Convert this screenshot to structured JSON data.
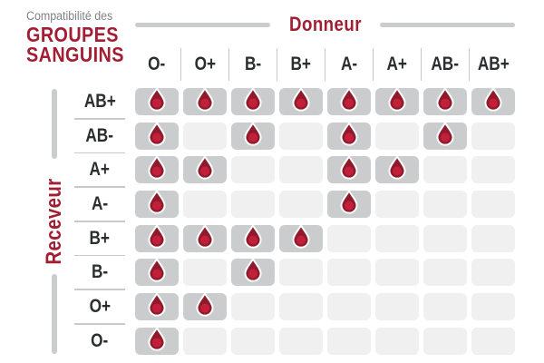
{
  "header": {
    "subtitle": "Compatibilité des",
    "title_line1": "GROUPES",
    "title_line2": "SANGUINS",
    "donor_label": "Donneur",
    "receiver_label": "Receveur"
  },
  "colors": {
    "accent_red": "#A21E33",
    "drop_fill": "#8E1A2B",
    "drop_highlight": "#C2203A",
    "cell_compatible_bg": "#CBCCCE",
    "cell_incompatible_bg": "#F0F0F1",
    "divider_gray": "#C8C9CB",
    "label_dark": "#2B2D2F",
    "subtitle_gray": "#808285"
  },
  "icons": {
    "compatible_marker": "blood-drop-icon"
  },
  "chart_data": {
    "type": "heatmap",
    "title": "Compatibilité des GROUPES SANGUINS",
    "x_axis_label": "Donneur",
    "y_axis_label": "Receveur",
    "columns": [
      "O-",
      "O+",
      "B-",
      "B+",
      "A-",
      "A+",
      "AB-",
      "AB+"
    ],
    "rows": [
      "AB+",
      "AB-",
      "A+",
      "A-",
      "B+",
      "B-",
      "O+",
      "O-"
    ],
    "matrix": [
      [
        1,
        1,
        1,
        1,
        1,
        1,
        1,
        1
      ],
      [
        1,
        0,
        1,
        0,
        1,
        0,
        1,
        0
      ],
      [
        1,
        1,
        0,
        0,
        1,
        1,
        0,
        0
      ],
      [
        1,
        0,
        0,
        0,
        1,
        0,
        0,
        0
      ],
      [
        1,
        1,
        1,
        1,
        0,
        0,
        0,
        0
      ],
      [
        1,
        0,
        1,
        0,
        0,
        0,
        0,
        0
      ],
      [
        1,
        1,
        0,
        0,
        0,
        0,
        0,
        0
      ],
      [
        1,
        0,
        0,
        0,
        0,
        0,
        0,
        0
      ]
    ],
    "value_meaning": {
      "1": "compatible — blood drop shown on gray cell",
      "0": "incompatible — empty light cell"
    },
    "legend_position": "none",
    "grid": "rounded cell blocks"
  }
}
